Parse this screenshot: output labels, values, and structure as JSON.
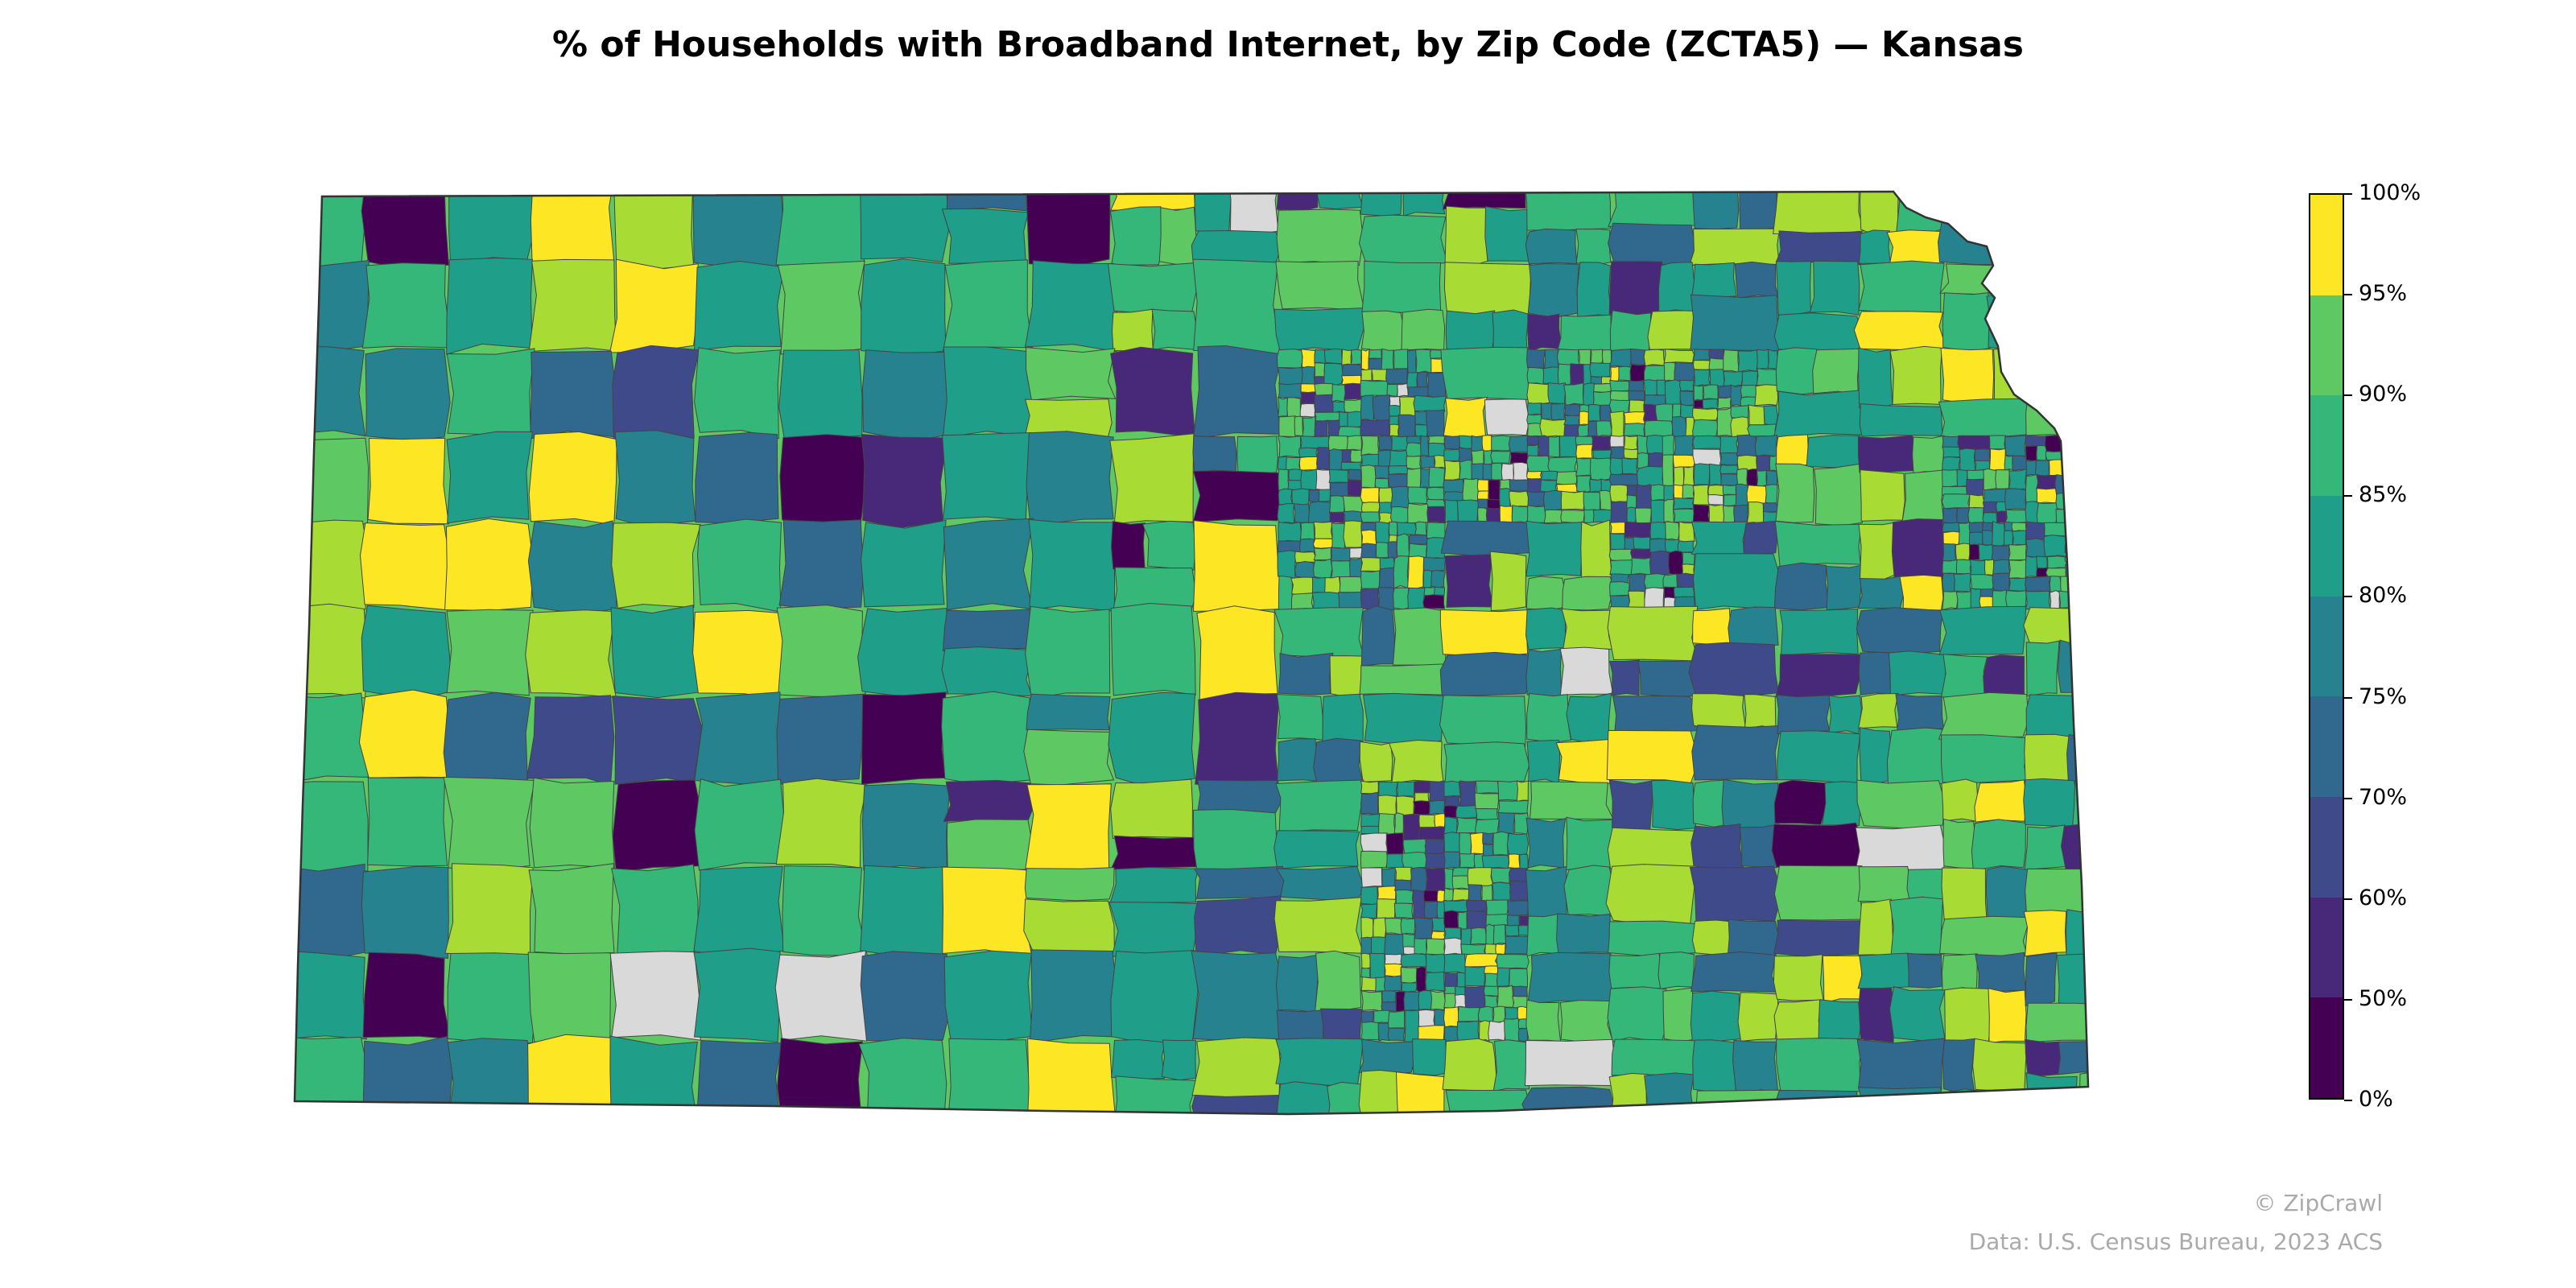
{
  "title": "% of Households with Broadband Internet, by Zip Code (ZCTA5) — Kansas",
  "legend": {
    "bins": [
      {
        "label": "0%",
        "color": "#440154"
      },
      {
        "label": "50%",
        "color": "#482878"
      },
      {
        "label": "60%",
        "color": "#3e4a89"
      },
      {
        "label": "70%",
        "color": "#31688e"
      },
      {
        "label": "75%",
        "color": "#26828e"
      },
      {
        "label": "80%",
        "color": "#1f9e89"
      },
      {
        "label": "85%",
        "color": "#35b779"
      },
      {
        "label": "90%",
        "color": "#5ec962"
      },
      {
        "label": "95%",
        "color": "#a8db34"
      },
      {
        "label": "100%",
        "color": "#fde725"
      }
    ],
    "no_data_color": "#d9d9d9"
  },
  "border_color": "#444444",
  "watermark": "© ZipCrawl",
  "source": "Data: U.S. Census Bureau, 2023 ACS"
}
